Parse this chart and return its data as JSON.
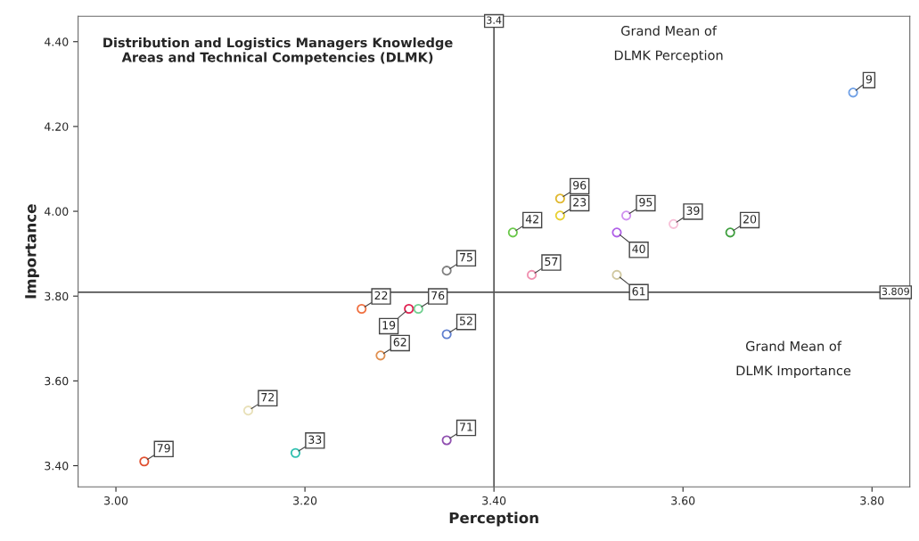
{
  "chart_data": {
    "type": "scatter",
    "title": "Distribution and Logistics Managers Knowledge Areas and Technical Competencies (DLMK)",
    "xlabel": "Perception",
    "ylabel": "Importance",
    "xlim": [
      2.96,
      3.84
    ],
    "ylim": [
      3.35,
      4.46
    ],
    "xticks": [
      {
        "value": 3.0,
        "label": "3.00"
      },
      {
        "value": 3.2,
        "label": "3.20"
      },
      {
        "value": 3.4,
        "label": "3.40"
      },
      {
        "value": 3.6,
        "label": "3.60"
      },
      {
        "value": 3.8,
        "label": "3.80"
      }
    ],
    "yticks": [
      {
        "value": 3.4,
        "label": "3.40"
      },
      {
        "value": 3.6,
        "label": "3.60"
      },
      {
        "value": 3.8,
        "label": "3.80"
      },
      {
        "value": 4.0,
        "label": "4.00"
      },
      {
        "value": 4.2,
        "label": "4.20"
      },
      {
        "value": 4.4,
        "label": "4.40"
      }
    ],
    "grid": false,
    "legend": false,
    "marker": "circle",
    "ref_lines": [
      {
        "axis": "x",
        "value": 3.4,
        "label": "3.4",
        "color": "#555555"
      },
      {
        "axis": "y",
        "value": 3.809,
        "label": "3.809",
        "color": "#555555"
      }
    ],
    "annotations": [
      "Grand Mean of DLMK Perception",
      "Grand Mean of DLMK Importance"
    ],
    "series": [
      {
        "name": "9",
        "color": "#6fa0e6",
        "x": [
          3.78
        ],
        "values": [
          4.28
        ]
      },
      {
        "name": "96",
        "color": "#e0b830",
        "x": [
          3.47
        ],
        "values": [
          4.03
        ]
      },
      {
        "name": "23",
        "color": "#e8d030",
        "x": [
          3.47
        ],
        "values": [
          3.99
        ]
      },
      {
        "name": "42",
        "color": "#6ac94a",
        "x": [
          3.42
        ],
        "values": [
          3.95
        ]
      },
      {
        "name": "40",
        "color": "#b060e8",
        "x": [
          3.53
        ],
        "values": [
          3.95
        ]
      },
      {
        "name": "95",
        "color": "#d090f0",
        "x": [
          3.54
        ],
        "values": [
          3.99
        ]
      },
      {
        "name": "39",
        "color": "#f8c0d8",
        "x": [
          3.59
        ],
        "values": [
          3.97
        ]
      },
      {
        "name": "20",
        "color": "#40a040",
        "x": [
          3.65
        ],
        "values": [
          3.95
        ]
      },
      {
        "name": "57",
        "color": "#f090b0",
        "x": [
          3.44
        ],
        "values": [
          3.85
        ]
      },
      {
        "name": "61",
        "color": "#d0c8a0",
        "x": [
          3.53
        ],
        "values": [
          3.85
        ]
      },
      {
        "name": "75",
        "color": "#808080",
        "x": [
          3.35
        ],
        "values": [
          3.86
        ]
      },
      {
        "name": "22",
        "color": "#f07040",
        "x": [
          3.26
        ],
        "values": [
          3.77
        ]
      },
      {
        "name": "19",
        "color": "#e02050",
        "x": [
          3.31
        ],
        "values": [
          3.77
        ]
      },
      {
        "name": "76",
        "color": "#70d090",
        "x": [
          3.32
        ],
        "values": [
          3.77
        ]
      },
      {
        "name": "52",
        "color": "#6080d0",
        "x": [
          3.35
        ],
        "values": [
          3.71
        ]
      },
      {
        "name": "62",
        "color": "#e09050",
        "x": [
          3.28
        ],
        "values": [
          3.66
        ]
      },
      {
        "name": "72",
        "color": "#e8e0b8",
        "x": [
          3.14
        ],
        "values": [
          3.53
        ]
      },
      {
        "name": "33",
        "color": "#30c0b0",
        "x": [
          3.19
        ],
        "values": [
          3.43
        ]
      },
      {
        "name": "71",
        "color": "#9050b0",
        "x": [
          3.35
        ],
        "values": [
          3.46
        ]
      },
      {
        "name": "79",
        "color": "#e05030",
        "x": [
          3.03
        ],
        "values": [
          3.41
        ]
      }
    ]
  }
}
